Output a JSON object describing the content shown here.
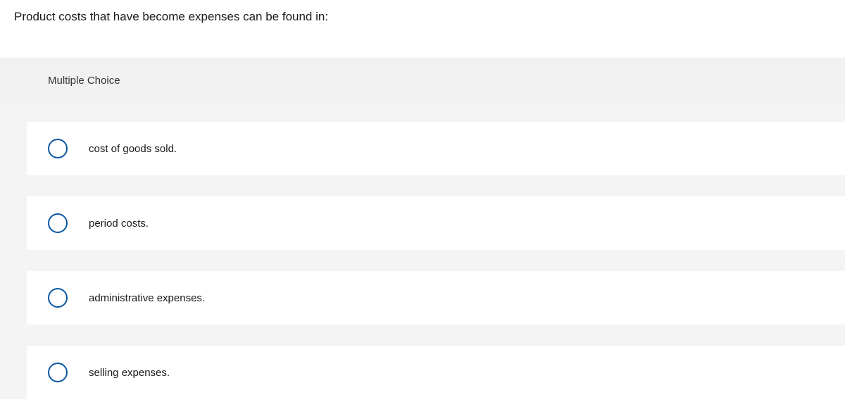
{
  "question": {
    "prompt": "Product costs that have become expenses can be found in:",
    "section_label": "Multiple Choice",
    "options": [
      {
        "label": "cost of goods sold."
      },
      {
        "label": "period costs."
      },
      {
        "label": "administrative expenses."
      },
      {
        "label": "selling expenses."
      }
    ]
  },
  "colors": {
    "radio_border": "#0b57a4",
    "page_bg": "#ffffff",
    "panel_bg": "#f4f4f4",
    "header_bg": "#f1f1f1",
    "option_bg": "#ffffff",
    "text": "#1a1a1a"
  },
  "typography": {
    "prompt_fontsize": 17,
    "section_fontsize": 15,
    "option_fontsize": 15
  }
}
